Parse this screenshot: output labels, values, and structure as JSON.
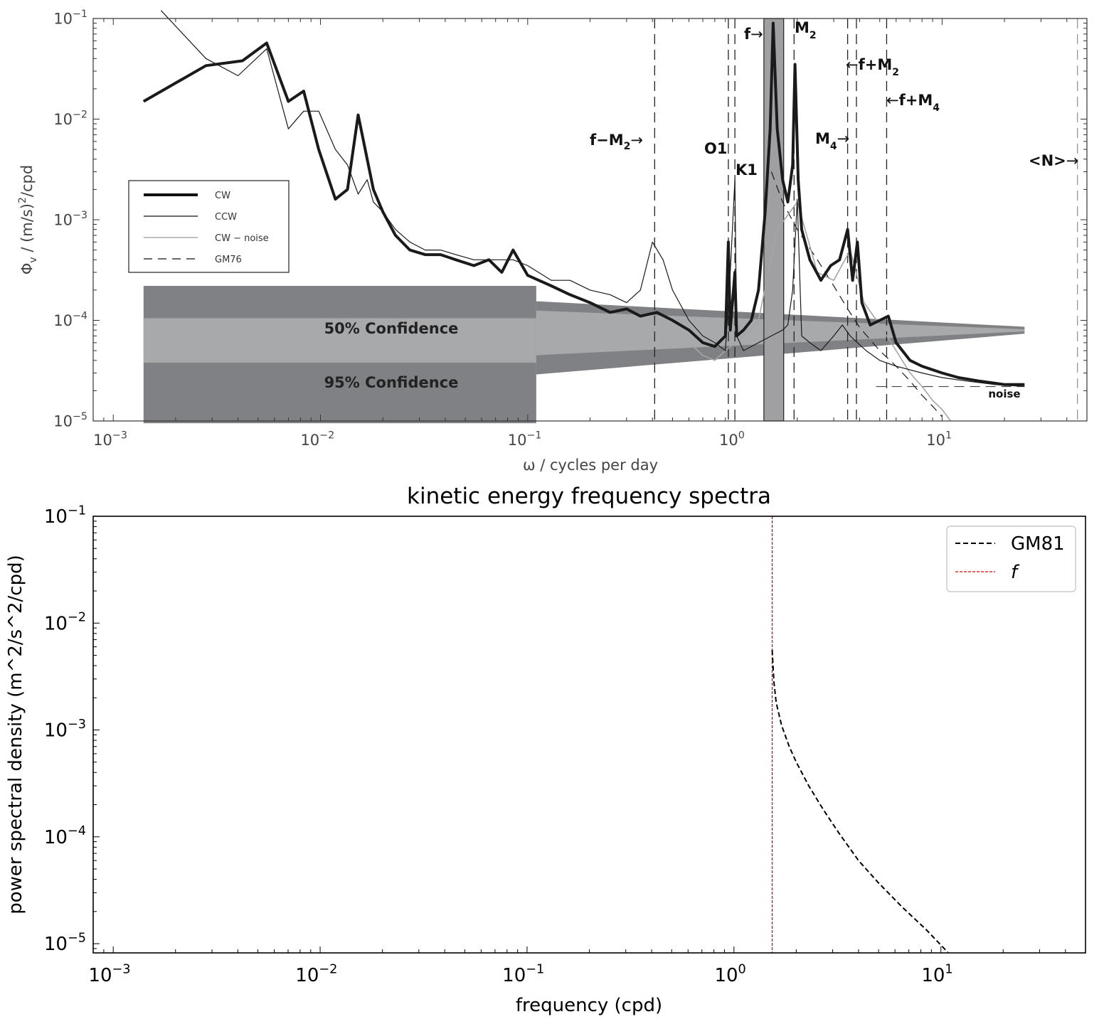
{
  "chart_data": [
    {
      "type": "line",
      "title": "",
      "xlabel": "ω / cycles per day",
      "ylabel": "Φv / (m/s)²/cpd",
      "ylabel_parts": {
        "base": "Φ",
        "sub": "v",
        "rest": " / (m/s)",
        "sup": "2",
        "tail": "/cpd"
      },
      "xscale": "log",
      "yscale": "log",
      "xlim": [
        0.0008,
        50
      ],
      "ylim": [
        1e-05,
        0.1
      ],
      "x_ticks": [
        {
          "value": 0.001,
          "base": "10",
          "exp": "−3"
        },
        {
          "value": 0.01,
          "base": "10",
          "exp": "−2"
        },
        {
          "value": 0.1,
          "base": "10",
          "exp": "−1"
        },
        {
          "value": 1,
          "base": "10",
          "exp": "0"
        },
        {
          "value": 10,
          "base": "10",
          "exp": "1"
        }
      ],
      "y_ticks": [
        {
          "value": 1e-05,
          "base": "10",
          "exp": "−5"
        },
        {
          "value": 0.0001,
          "base": "10",
          "exp": "−4"
        },
        {
          "value": 0.001,
          "base": "10",
          "exp": "−3"
        },
        {
          "value": 0.01,
          "base": "10",
          "exp": "−2"
        },
        {
          "value": 0.1,
          "base": "10",
          "exp": "−1"
        }
      ],
      "legend": {
        "placement": "center-left",
        "entries": [
          {
            "label": "CW",
            "style": "thick-black"
          },
          {
            "label": "CCW",
            "style": "thin-black"
          },
          {
            "label": "CW − noise",
            "style": "thin-gray"
          },
          {
            "label": "GM76",
            "style": "dashed-black"
          }
        ]
      },
      "confidence_bands": [
        {
          "label": "50% Confidence",
          "x_range": [
            0.0014,
            0.11
          ],
          "low": 3.8e-05,
          "high": 0.000105
        },
        {
          "label": "95% Confidence",
          "x_range": [
            0.0014,
            0.11
          ],
          "low": 9.5e-06,
          "high": 0.00022
        }
      ],
      "f_band": {
        "x_range": [
          1.38,
          1.72
        ]
      },
      "vertical_lines": [
        {
          "label": "f−M2",
          "x": 0.41
        },
        {
          "label": "O1",
          "x": 0.93
        },
        {
          "label": "K1",
          "x": 1.0
        },
        {
          "label": "M2",
          "x": 1.93
        },
        {
          "label": "M4",
          "x": 3.86
        },
        {
          "label": "f+M2",
          "x": 3.5
        },
        {
          "label": "f+M4",
          "x": 5.4
        },
        {
          "label": "<N>",
          "x": 45
        }
      ],
      "annotations": [
        {
          "base": "f−M",
          "sub": "2",
          "arrow": "→"
        },
        {
          "base": "O1",
          "sub": "",
          "arrow": ""
        },
        {
          "base": "K1",
          "sub": "",
          "arrow": ""
        },
        {
          "base": "f",
          "sub": "",
          "arrow": "→"
        },
        {
          "base": "M",
          "sub": "2",
          "arrow": ""
        },
        {
          "base": "f+M",
          "sub": "2",
          "arrow": "←"
        },
        {
          "base": "M",
          "sub": "4",
          "arrow": "→"
        },
        {
          "base": "f+M",
          "sub": "4",
          "arrow": "←"
        },
        {
          "base": "<N>",
          "sub": "",
          "arrow": "→"
        },
        {
          "base": "noise",
          "sub": "",
          "arrow": ""
        }
      ],
      "noise_level": 2.2e-05,
      "series": [
        {
          "name": "CW",
          "x": [
            0.0014,
            0.0028,
            0.0042,
            0.0055,
            0.007,
            0.0083,
            0.0098,
            0.0118,
            0.0135,
            0.0152,
            0.0168,
            0.018,
            0.02,
            0.023,
            0.027,
            0.032,
            0.038,
            0.045,
            0.055,
            0.065,
            0.075,
            0.085,
            0.1,
            0.13,
            0.16,
            0.2,
            0.25,
            0.3,
            0.35,
            0.42,
            0.5,
            0.6,
            0.7,
            0.8,
            0.9,
            0.93,
            0.95,
            1.0,
            1.02,
            1.1,
            1.2,
            1.3,
            1.4,
            1.48,
            1.53,
            1.6,
            1.7,
            1.8,
            1.9,
            1.95,
            2.02,
            2.1,
            2.3,
            2.6,
            2.9,
            3.2,
            3.5,
            3.7,
            3.9,
            4.1,
            4.5,
            5.0,
            5.5,
            6.0,
            7.0,
            8.0,
            10.0,
            12.0,
            15.0,
            20.0,
            25.0
          ],
          "y": [
            0.015,
            0.034,
            0.038,
            0.057,
            0.015,
            0.019,
            0.005,
            0.0016,
            0.002,
            0.011,
            0.004,
            0.002,
            0.0012,
            0.0007,
            0.0005,
            0.00045,
            0.00045,
            0.0004,
            0.00035,
            0.0004,
            0.0003,
            0.0005,
            0.00028,
            0.00022,
            0.00018,
            0.00015,
            0.00012,
            0.00013,
            0.00011,
            0.00012,
            0.0001,
            8e-05,
            6e-05,
            5.5e-05,
            7e-05,
            0.0006,
            8e-05,
            0.0003,
            7e-05,
            8e-05,
            0.0001,
            0.0002,
            0.0012,
            0.008,
            0.09,
            0.008,
            0.0025,
            0.0015,
            0.0035,
            0.035,
            0.0025,
            0.0008,
            0.0004,
            0.00025,
            0.00035,
            0.0004,
            0.0008,
            0.00025,
            0.0006,
            0.00015,
            9e-05,
            0.0001,
            0.00011,
            6e-05,
            4e-05,
            3.5e-05,
            3e-05,
            2.7e-05,
            2.5e-05,
            2.3e-05,
            2.3e-05
          ]
        },
        {
          "name": "CCW",
          "x": [
            0.0017,
            0.0028,
            0.004,
            0.0055,
            0.007,
            0.0083,
            0.0098,
            0.0118,
            0.0135,
            0.0152,
            0.0168,
            0.018,
            0.02,
            0.023,
            0.027,
            0.032,
            0.038,
            0.045,
            0.055,
            0.065,
            0.075,
            0.085,
            0.1,
            0.13,
            0.16,
            0.2,
            0.25,
            0.3,
            0.35,
            0.4,
            0.45,
            0.5,
            0.6,
            0.7,
            0.8,
            0.9,
            0.95,
            1.0,
            1.02,
            1.1,
            1.3,
            1.5,
            1.7,
            1.8,
            1.9,
            2.0,
            2.1,
            2.3,
            2.6,
            3.0,
            3.3,
            3.6,
            3.9,
            4.3,
            5.0,
            6.0,
            8.0,
            10.0,
            13.0,
            18.0,
            25.0
          ],
          "y": [
            0.12,
            0.04,
            0.027,
            0.05,
            0.008,
            0.012,
            0.012,
            0.005,
            0.0035,
            0.0018,
            0.0025,
            0.0015,
            0.0012,
            0.0008,
            0.0006,
            0.0005,
            0.0005,
            0.00045,
            0.0004,
            0.0004,
            0.0004,
            0.0004,
            0.00035,
            0.00025,
            0.00025,
            0.0002,
            0.00018,
            0.00015,
            0.0002,
            0.0006,
            0.0004,
            0.0002,
            0.0001,
            7e-05,
            6e-05,
            5e-05,
            0.0003,
            0.0025,
            7e-05,
            5e-05,
            6e-05,
            7e-05,
            8e-05,
            9e-05,
            0.0002,
            0.0016,
            7e-05,
            6e-05,
            5e-05,
            7e-05,
            9e-05,
            7e-05,
            6e-05,
            5e-05,
            4e-05,
            3.5e-05,
            3e-05,
            2.7e-05,
            2.5e-05,
            2.3e-05,
            2.2e-05
          ]
        },
        {
          "name": "CW − noise",
          "x": [
            0.6,
            0.7,
            0.8,
            0.9,
            1.1,
            1.3,
            1.6,
            2.0,
            2.5,
            3.0,
            3.6,
            4.2,
            5.0,
            6.0,
            7.0,
            8.0,
            9.0,
            10.0,
            11.0
          ],
          "y": [
            6e-05,
            4.5e-05,
            4e-05,
            5e-05,
            7e-05,
            0.0001,
            0.0008,
            0.0015,
            0.0003,
            0.00025,
            0.0005,
            0.00015,
            9e-05,
            5e-05,
            3e-05,
            2.2e-05,
            1.6e-05,
            1.3e-05,
            1e-05
          ]
        },
        {
          "name": "GM76",
          "x": [
            1.5,
            1.7,
            2.0,
            2.5,
            3.0,
            3.5,
            4.0,
            5.0,
            6.0,
            7.0,
            8.0,
            9.0,
            10.0
          ],
          "y": [
            0.003,
            0.0015,
            0.0008,
            0.0004,
            0.00022,
            0.00013,
            8.5e-05,
            5e-05,
            3.5e-05,
            2.5e-05,
            1.8e-05,
            1.4e-05,
            1.1e-05
          ]
        }
      ]
    },
    {
      "type": "line",
      "title": "kinetic energy frequency spectra",
      "xlabel": "frequency (cpd)",
      "ylabel": "power spectral density (m^2/s^2/cpd)",
      "xscale": "log",
      "yscale": "log",
      "xlim": [
        0.0008,
        50
      ],
      "ylim": [
        8.2e-06,
        0.1
      ],
      "x_ticks": [
        {
          "value": 0.001,
          "base": "10",
          "exp": "−3"
        },
        {
          "value": 0.01,
          "base": "10",
          "exp": "−2"
        },
        {
          "value": 0.1,
          "base": "10",
          "exp": "−1"
        },
        {
          "value": 1,
          "base": "10",
          "exp": "0"
        },
        {
          "value": 10,
          "base": "10",
          "exp": "1"
        }
      ],
      "y_ticks": [
        {
          "value": 1e-05,
          "base": "10",
          "exp": "−5"
        },
        {
          "value": 0.0001,
          "base": "10",
          "exp": "−4"
        },
        {
          "value": 0.001,
          "base": "10",
          "exp": "−3"
        },
        {
          "value": 0.01,
          "base": "10",
          "exp": "−2"
        },
        {
          "value": 0.1,
          "base": "10",
          "exp": "−1"
        }
      ],
      "legend": {
        "placement": "top-right",
        "entries": [
          {
            "label": "GM81",
            "style": "dashed-black"
          },
          {
            "label": "f",
            "style": "dashed-red"
          }
        ]
      },
      "vertical_lines": [
        {
          "label": "f",
          "x": 1.53,
          "color": "#e00000"
        }
      ],
      "series": [
        {
          "name": "GM81",
          "x": [
            1.53,
            1.56,
            1.6,
            1.7,
            1.85,
            2.0,
            2.3,
            2.7,
            3.2,
            4.0,
            5.0,
            6.5,
            8.5,
            10.8
          ],
          "y": [
            0.0056,
            0.0028,
            0.0018,
            0.0011,
            0.0007,
            0.0005,
            0.0003,
            0.00018,
            0.00011,
            6e-05,
            3.7e-05,
            2.2e-05,
            1.35e-05,
            8.3e-06
          ]
        }
      ]
    }
  ]
}
